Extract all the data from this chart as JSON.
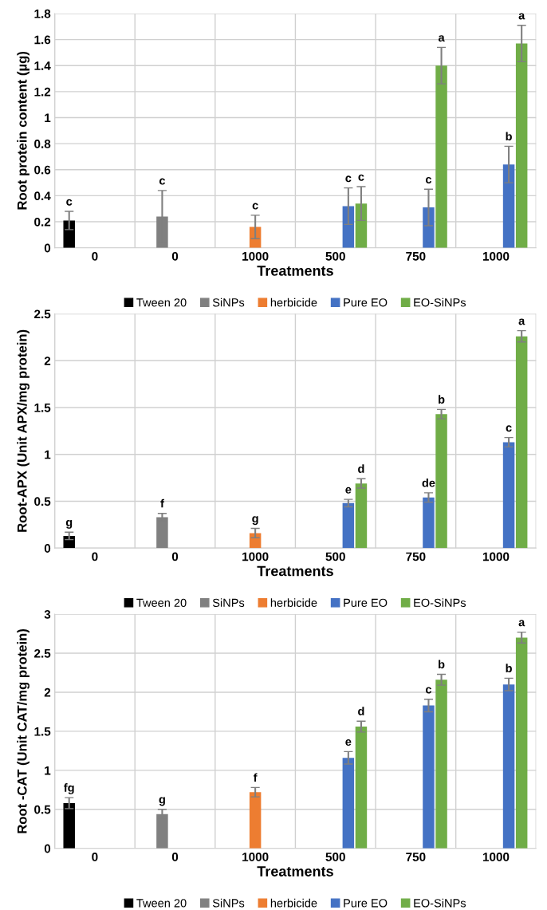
{
  "chart_data": [
    {
      "type": "bar",
      "xlabel": "Treatments",
      "ylabel": "Root protein content (µg)",
      "categories": [
        "0",
        "0",
        "1000",
        "500",
        "750",
        "1000"
      ],
      "ylim": [
        0,
        1.8
      ],
      "yticks": [
        0,
        0.2,
        0.4,
        0.6,
        0.8,
        1,
        1.2,
        1.4,
        1.6,
        1.8
      ],
      "grid": true,
      "legend": "bottom",
      "series": [
        {
          "name": "Tween 20",
          "color": "#000000",
          "values": [
            0.21,
            null,
            null,
            null,
            null,
            null
          ],
          "errors": [
            0.07,
            null,
            null,
            null,
            null,
            null
          ],
          "value_labels": [
            "c",
            null,
            null,
            null,
            null,
            null
          ]
        },
        {
          "name": "SiNPs",
          "color": "#808080",
          "values": [
            null,
            0.24,
            null,
            null,
            null,
            null
          ],
          "errors": [
            null,
            0.2,
            null,
            null,
            null,
            null
          ],
          "value_labels": [
            null,
            "c",
            null,
            null,
            null,
            null
          ]
        },
        {
          "name": "herbicide",
          "color": "#ed7d31",
          "values": [
            null,
            null,
            0.16,
            null,
            null,
            null
          ],
          "errors": [
            null,
            null,
            0.09,
            null,
            null,
            null
          ],
          "value_labels": [
            null,
            null,
            "c",
            null,
            null,
            null
          ]
        },
        {
          "name": "Pure EO",
          "color": "#4472c4",
          "values": [
            null,
            null,
            null,
            0.32,
            0.31,
            0.64
          ],
          "errors": [
            null,
            null,
            null,
            0.14,
            0.14,
            0.14
          ],
          "value_labels": [
            null,
            null,
            null,
            "c",
            "c",
            "b"
          ]
        },
        {
          "name": "EO-SiNPs",
          "color": "#70ad47",
          "values": [
            null,
            null,
            null,
            0.34,
            1.4,
            1.57
          ],
          "errors": [
            null,
            null,
            null,
            0.13,
            0.14,
            0.14
          ],
          "value_labels": [
            null,
            null,
            null,
            "c",
            "a",
            "a"
          ]
        }
      ]
    },
    {
      "type": "bar",
      "xlabel": "Treatments",
      "ylabel": "Root-APX (Unit APX/mg protein)",
      "categories": [
        "0",
        "0",
        "1000",
        "500",
        "750",
        "1000"
      ],
      "ylim": [
        0,
        2.5
      ],
      "yticks": [
        0,
        0.5,
        1,
        1.5,
        2,
        2.5
      ],
      "grid": true,
      "legend": "bottom",
      "series": [
        {
          "name": "Tween 20",
          "color": "#000000",
          "values": [
            0.13,
            null,
            null,
            null,
            null,
            null
          ],
          "errors": [
            0.04,
            null,
            null,
            null,
            null,
            null
          ],
          "value_labels": [
            "g",
            null,
            null,
            null,
            null,
            null
          ]
        },
        {
          "name": "SiNPs",
          "color": "#808080",
          "values": [
            null,
            0.33,
            null,
            null,
            null,
            null
          ],
          "errors": [
            null,
            0.04,
            null,
            null,
            null,
            null
          ],
          "value_labels": [
            null,
            "f",
            null,
            null,
            null,
            null
          ]
        },
        {
          "name": "herbicide",
          "color": "#ed7d31",
          "values": [
            null,
            null,
            0.16,
            null,
            null,
            null
          ],
          "errors": [
            null,
            null,
            0.05,
            null,
            null,
            null
          ],
          "value_labels": [
            null,
            null,
            "g",
            null,
            null,
            null
          ]
        },
        {
          "name": "Pure EO",
          "color": "#4472c4",
          "values": [
            null,
            null,
            null,
            0.48,
            0.54,
            1.13
          ],
          "errors": [
            null,
            null,
            null,
            0.04,
            0.05,
            0.05
          ],
          "value_labels": [
            null,
            null,
            null,
            "e",
            "de",
            "c"
          ]
        },
        {
          "name": "EO-SiNPs",
          "color": "#70ad47",
          "values": [
            null,
            null,
            null,
            0.69,
            1.43,
            2.26
          ],
          "errors": [
            null,
            null,
            null,
            0.05,
            0.05,
            0.06
          ],
          "value_labels": [
            null,
            null,
            null,
            "d",
            "b",
            "a"
          ]
        }
      ]
    },
    {
      "type": "bar",
      "xlabel": "Treatments",
      "ylabel": "Root -CAT (Unit CAT/mg protein)",
      "categories": [
        "0",
        "0",
        "1000",
        "500",
        "750",
        "1000"
      ],
      "ylim": [
        0,
        3
      ],
      "yticks": [
        0,
        0.5,
        1,
        1.5,
        2,
        2.5,
        3
      ],
      "grid": true,
      "legend": "bottom",
      "series": [
        {
          "name": "Tween 20",
          "color": "#000000",
          "values": [
            0.58,
            null,
            null,
            null,
            null,
            null
          ],
          "errors": [
            0.07,
            null,
            null,
            null,
            null,
            null
          ],
          "value_labels": [
            "fg",
            null,
            null,
            null,
            null,
            null
          ]
        },
        {
          "name": "SiNPs",
          "color": "#808080",
          "values": [
            null,
            0.44,
            null,
            null,
            null,
            null
          ],
          "errors": [
            null,
            0.06,
            null,
            null,
            null,
            null
          ],
          "value_labels": [
            null,
            "g",
            null,
            null,
            null,
            null
          ]
        },
        {
          "name": "herbicide",
          "color": "#ed7d31",
          "values": [
            null,
            null,
            0.72,
            null,
            null,
            null
          ],
          "errors": [
            null,
            null,
            0.06,
            null,
            null,
            null
          ],
          "value_labels": [
            null,
            null,
            "f",
            null,
            null,
            null
          ]
        },
        {
          "name": "Pure EO",
          "color": "#4472c4",
          "values": [
            null,
            null,
            null,
            1.16,
            1.83,
            2.1
          ],
          "errors": [
            null,
            null,
            null,
            0.08,
            0.08,
            0.08
          ],
          "value_labels": [
            null,
            null,
            null,
            "e",
            "c",
            "b"
          ]
        },
        {
          "name": "EO-SiNPs",
          "color": "#70ad47",
          "values": [
            null,
            null,
            null,
            1.56,
            2.16,
            2.7
          ],
          "errors": [
            null,
            null,
            null,
            0.07,
            0.07,
            0.07
          ],
          "value_labels": [
            null,
            null,
            null,
            "d",
            "b",
            "a"
          ]
        }
      ]
    }
  ]
}
